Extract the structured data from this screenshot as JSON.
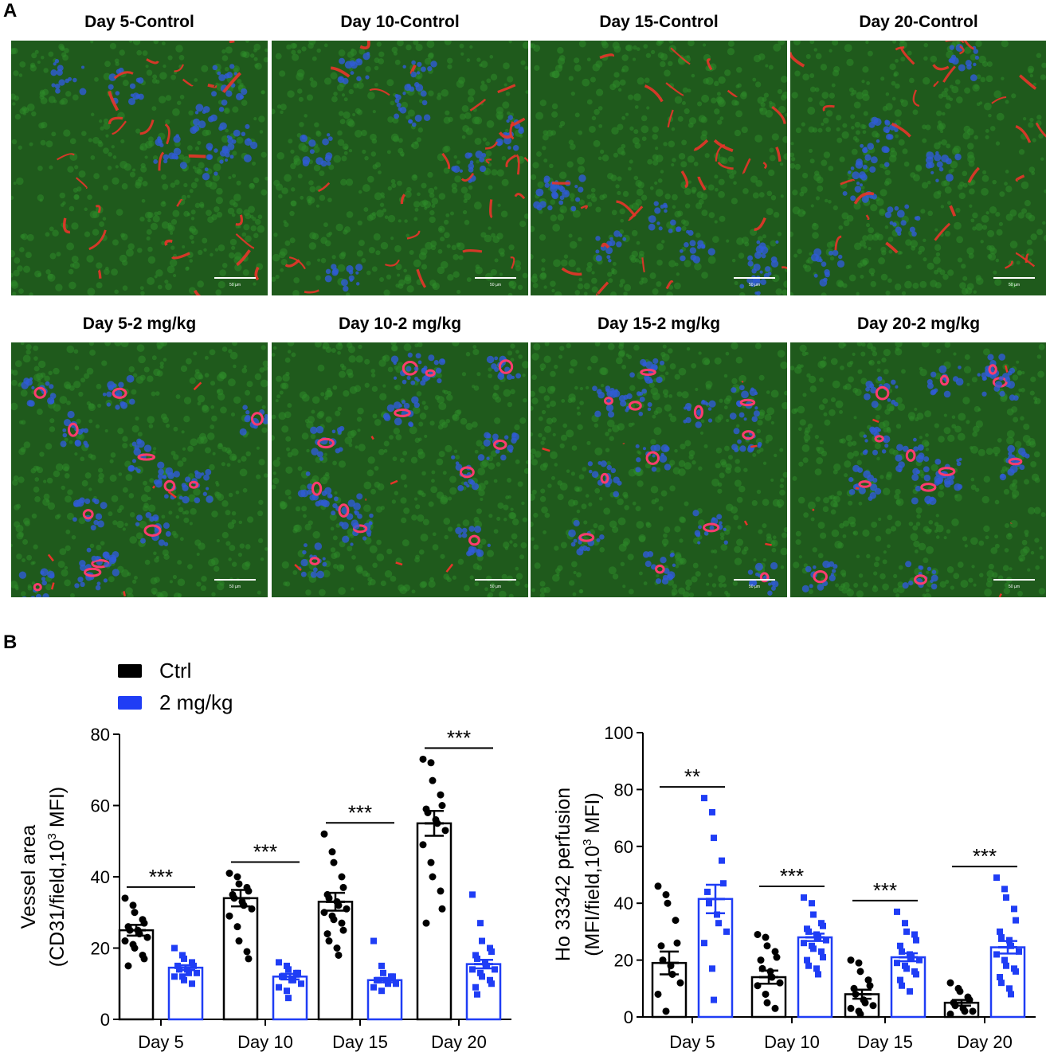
{
  "panel_a_label": "A",
  "panel_b_label": "B",
  "micrographs": [
    {
      "title": "Day 5-Control",
      "group": "control",
      "scale_label": "50 µm"
    },
    {
      "title": "Day 10-Control",
      "group": "control",
      "scale_label": "50 µm"
    },
    {
      "title": "Day 15-Control",
      "group": "control",
      "scale_label": "50 µm"
    },
    {
      "title": "Day 20-Control",
      "group": "control",
      "scale_label": "50 µm"
    },
    {
      "title": "Day 5-2 mg/kg",
      "group": "treated",
      "scale_label": "50 µm"
    },
    {
      "title": "Day 10-2 mg/kg",
      "group": "treated",
      "scale_label": "50 µm"
    },
    {
      "title": "Day 15-2 mg/kg",
      "group": "treated",
      "scale_label": "50 µm"
    },
    {
      "title": "Day 20-2 mg/kg",
      "group": "treated",
      "scale_label": "50 µm"
    }
  ],
  "stain_colors": {
    "cd31": "#e8342a",
    "hoechst": "#2f5bd6",
    "tissue": "#2e8a2a"
  },
  "legend": [
    {
      "label": "Ctrl",
      "color": "#000000"
    },
    {
      "label": "2 mg/kg",
      "color": "#1f3df5"
    }
  ],
  "chart_data": [
    {
      "type": "bar",
      "categories": [
        "Day 5",
        "Day 10",
        "Day 15",
        "Day 20"
      ],
      "ylabel_line1": "Vessel area",
      "ylabel_line2_prefix": "(CD31/field,10",
      "ylabel_sup": "3",
      "ylabel_line2_suffix": " MFI)",
      "ylim": [
        0,
        80
      ],
      "yticks": [
        0,
        20,
        40,
        60,
        80
      ],
      "significance": [
        "***",
        "***",
        "***",
        "***"
      ],
      "series": [
        {
          "name": "Ctrl",
          "color": "#000000",
          "values": [
            25,
            34,
            33,
            55
          ],
          "sem": [
            1.5,
            2.3,
            2.5,
            3.5
          ],
          "points": [
            [
              34,
              32,
              30,
              28,
              27,
              26,
              25,
              25,
              24,
              23,
              22,
              21,
              20,
              18,
              17,
              15
            ],
            [
              41,
              40,
              38,
              37,
              36,
              35,
              34,
              33,
              32,
              31,
              29,
              26,
              22,
              19,
              17
            ],
            [
              52,
              47,
              44,
              40,
              37,
              35,
              34,
              33,
              32,
              31,
              30,
              29,
              28,
              27,
              25,
              24,
              22,
              20,
              18
            ],
            [
              73,
              72,
              67,
              63,
              60,
              59,
              58,
              56,
              55,
              53,
              49,
              44,
              40,
              36,
              31,
              27
            ]
          ]
        },
        {
          "name": "2 mg/kg",
          "color": "#1f3df5",
          "values": [
            14.5,
            12,
            11,
            15.5
          ],
          "sem": [
            0.7,
            0.8,
            0.6,
            1.2
          ],
          "points": [
            [
              20,
              18,
              17,
              16,
              15,
              15,
              14,
              14,
              13,
              13,
              12,
              12,
              11,
              10
            ],
            [
              16,
              15,
              14,
              13,
              13,
              12,
              12,
              11,
              11,
              10,
              9,
              8,
              6
            ],
            [
              22,
              15,
              13,
              12,
              12,
              11,
              11,
              11,
              10,
              10,
              9,
              8
            ],
            [
              35,
              27,
              22,
              20,
              19,
              18,
              17,
              16,
              15,
              14,
              14,
              13,
              12,
              11,
              10,
              9,
              7
            ]
          ]
        }
      ]
    },
    {
      "type": "bar",
      "categories": [
        "Day 5",
        "Day 10",
        "Day 15",
        "Day 20"
      ],
      "ylabel_line1": "Ho 33342 perfusion",
      "ylabel_line2_prefix": "(MFI/field,10",
      "ylabel_sup": "3",
      "ylabel_line2_suffix": " MFI)",
      "ylim": [
        0,
        100
      ],
      "yticks": [
        0,
        20,
        40,
        60,
        80,
        100
      ],
      "significance": [
        "**",
        "***",
        "***",
        "***"
      ],
      "series": [
        {
          "name": "Ctrl",
          "color": "#000000",
          "values": [
            19,
            14,
            8,
            5
          ],
          "sem": [
            4,
            2.3,
            1.6,
            1
          ],
          "points": [
            [
              46,
              43,
              40,
              34,
              26,
              25,
              20,
              18,
              15,
              12,
              8,
              2
            ],
            [
              29,
              28,
              25,
              23,
              21,
              20,
              17,
              16,
              14,
              12,
              11,
              8,
              5,
              3
            ],
            [
              20,
              19,
              16,
              13,
              11,
              10,
              8,
              6,
              5,
              4,
              3,
              2,
              1
            ],
            [
              12,
              10,
              9,
              7,
              6,
              5,
              4,
              3,
              2,
              2,
              1
            ]
          ]
        },
        {
          "name": "2 mg/kg",
          "color": "#1f3df5",
          "values": [
            41.5,
            28,
            21,
            24.5
          ],
          "sem": [
            5,
            1.3,
            1.4,
            2.2
          ],
          "points": [
            [
              77,
              72,
              63,
              55,
              47,
              44,
              40,
              36,
              33,
              30,
              26,
              17,
              6
            ],
            [
              42,
              40,
              36,
              33,
              32,
              31,
              30,
              29,
              28,
              27,
              26,
              25,
              24,
              23,
              21,
              20,
              18,
              17,
              15
            ],
            [
              37,
              33,
              30,
              29,
              27,
              25,
              23,
              22,
              21,
              20,
              19,
              18,
              17,
              16,
              15,
              13,
              11,
              9
            ],
            [
              49,
              45,
              42,
              38,
              34,
              30,
              28,
              27,
              25,
              23,
              22,
              20,
              18,
              17,
              16,
              14,
              12,
              10,
              8
            ]
          ]
        }
      ]
    }
  ]
}
